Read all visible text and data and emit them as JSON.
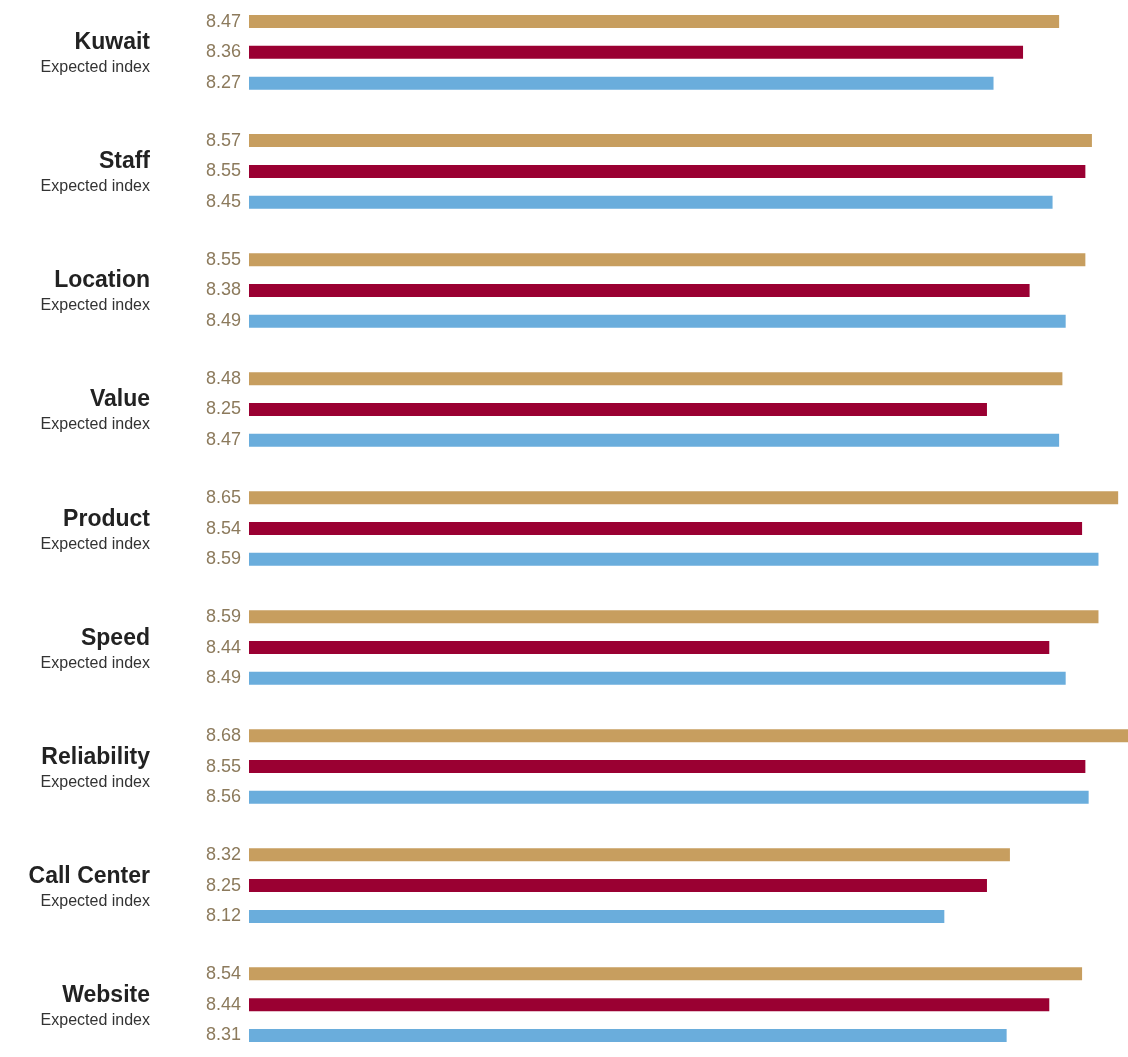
{
  "chart_data": {
    "type": "bar",
    "orientation": "horizontal",
    "data_labels": true,
    "tick_labels": "y",
    "categories": [
      "Kuwait\nExpected index",
      "Staff\nExpected index",
      "Location\nExpected index",
      "Value\nExpected index",
      "Product\nExpected index",
      "Speed\nExpected index",
      "Reliability\nExpected index",
      "Call Center\nExpected index",
      "Website\nExpected index"
    ],
    "xlim": [
      6,
      8.68
    ],
    "series": [
      {
        "color": "#c79e5f",
        "values": [
          8.47,
          8.57,
          8.55,
          8.48,
          8.65,
          8.59,
          8.68,
          8.32,
          8.54
        ]
      },
      {
        "color": "#9a0032",
        "values": [
          8.36,
          8.55,
          8.38,
          8.25,
          8.54,
          8.44,
          8.55,
          8.25,
          8.44
        ]
      },
      {
        "color": "#6aaddc",
        "values": [
          8.27,
          8.45,
          8.49,
          8.47,
          8.59,
          8.49,
          8.56,
          8.12,
          8.31
        ]
      }
    ]
  }
}
